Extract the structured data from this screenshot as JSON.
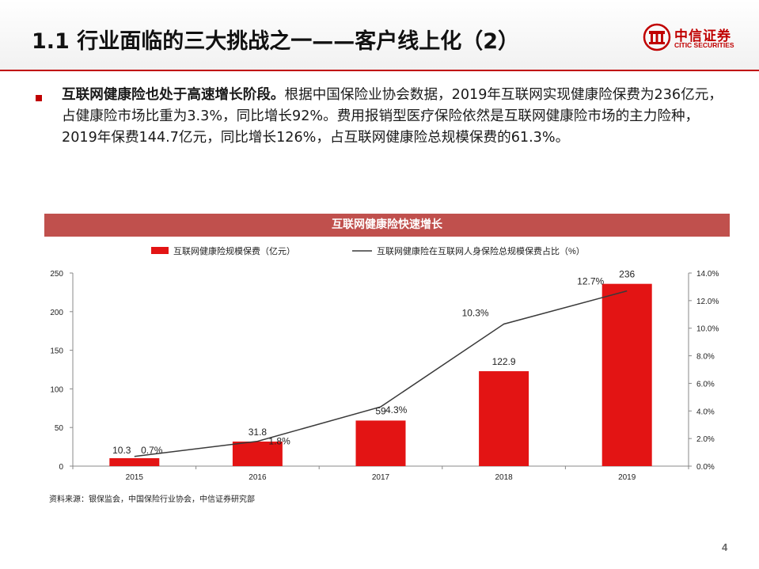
{
  "header": {
    "title": "1.1 行业面临的三大挑战之一——客户线上化（2）"
  },
  "logo": {
    "cn": "中信证券",
    "en": "CITIC SECURITIES"
  },
  "body": {
    "bold_lead": "互联网健康险也处于高速增长阶段。",
    "rest": "根据中国保险业协会数据，2019年互联网实现健康险保费为236亿元，占健康险市场比重为3.3%，同比增长92%。费用报销型医疗保险依然是互联网健康险市场的主力险种，2019年保费144.7亿元，同比增长126%，占互联网健康险总规模保费的61.3%。"
  },
  "chart_data": {
    "type": "bar",
    "title": "互联网健康险快速增长",
    "categories": [
      "2015",
      "2016",
      "2017",
      "2018",
      "2019"
    ],
    "series": [
      {
        "name": "互联网健康险规模保费（亿元）",
        "kind": "bar",
        "axis": "left",
        "values": [
          10.3,
          31.8,
          59,
          122.9,
          236
        ],
        "labels": [
          "10.3",
          "31.8",
          "59",
          "122.9",
          "236"
        ]
      },
      {
        "name": "互联网健康险在互联网人身保险总规模保费占比（%）",
        "kind": "line",
        "axis": "right",
        "values": [
          0.7,
          1.8,
          4.3,
          10.3,
          12.7
        ],
        "labels": [
          "0.7%",
          "1.8%",
          "4.3%",
          "10.3%",
          "12.7%"
        ]
      }
    ],
    "ylim_left": [
      0,
      250
    ],
    "yticks_left": [
      "0",
      "50",
      "100",
      "150",
      "200",
      "250"
    ],
    "ylim_right": [
      0,
      14
    ],
    "yticks_right": [
      "0.0%",
      "2.0%",
      "4.0%",
      "6.0%",
      "8.0%",
      "10.0%",
      "12.0%",
      "14.0%"
    ],
    "legend_position": "top",
    "grid": false,
    "colors": {
      "bar": "#e31414",
      "line": "#3a3a3a"
    }
  },
  "source": "资料来源：银保监会，中国保险行业协会，中信证券研究部",
  "page_number": "4"
}
